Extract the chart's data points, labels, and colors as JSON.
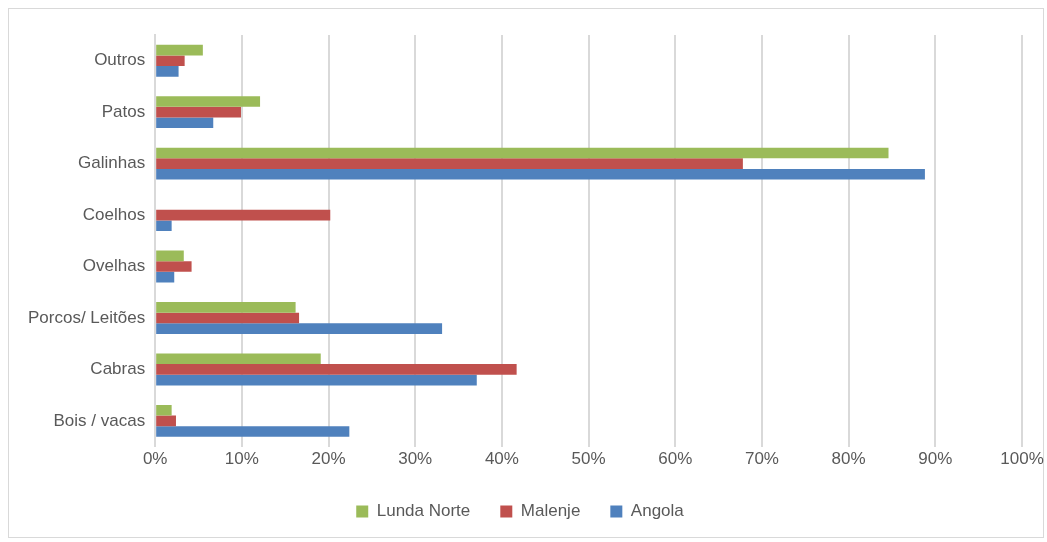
{
  "chart_data": {
    "type": "bar",
    "orientation": "horizontal",
    "categories": [
      "Outros",
      "Patos",
      "Galinhas",
      "Coelhos",
      "Ovelhas",
      "Porcos/ Leitões",
      "Cabras",
      "Bois / vacas"
    ],
    "series": [
      {
        "name": "Lunda Norte",
        "color": "#9bbb59",
        "values": [
          5.5,
          12.1,
          84.6,
          null,
          3.3,
          16.2,
          19.1,
          1.9
        ]
      },
      {
        "name": "Malenje",
        "color": "#c0504d",
        "values": [
          3.4,
          9.9,
          67.8,
          20.2,
          4.2,
          16.6,
          41.7,
          2.4
        ]
      },
      {
        "name": "Angola",
        "color": "#4f81bd",
        "values": [
          2.7,
          6.7,
          88.8,
          1.9,
          2.2,
          33.1,
          37.1,
          22.4
        ]
      }
    ],
    "xlim": [
      0,
      100
    ],
    "xticks": [
      {
        "value": 0,
        "label": "0%"
      },
      {
        "value": 10,
        "label": "10%"
      },
      {
        "value": 20,
        "label": "20%"
      },
      {
        "value": 30,
        "label": "30%"
      },
      {
        "value": 40,
        "label": "40%"
      },
      {
        "value": 50,
        "label": "50%"
      },
      {
        "value": 60,
        "label": "60%"
      },
      {
        "value": 70,
        "label": "70%"
      },
      {
        "value": 80,
        "label": "80%"
      },
      {
        "value": 90,
        "label": "90%"
      },
      {
        "value": 100,
        "label": "100%"
      }
    ],
    "grid": "x",
    "legend": "bottom"
  }
}
